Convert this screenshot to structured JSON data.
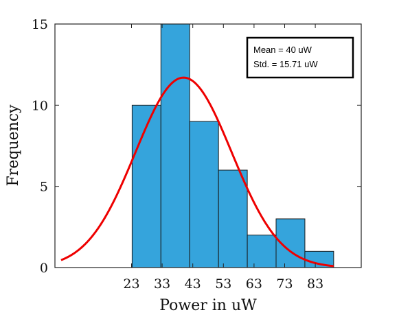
{
  "chart_data": {
    "type": "bar",
    "title": "",
    "xlabel": "Power in uW",
    "ylabel": "Frequency",
    "xlim": [
      -2,
      98
    ],
    "ylim": [
      0,
      15
    ],
    "bin_width": 9.4,
    "bins": [
      {
        "start": 23.2,
        "end": 32.6,
        "count": 10
      },
      {
        "start": 32.6,
        "end": 42.0,
        "count": 15
      },
      {
        "start": 42.0,
        "end": 51.4,
        "count": 9
      },
      {
        "start": 51.4,
        "end": 60.8,
        "count": 6
      },
      {
        "start": 60.8,
        "end": 70.2,
        "count": 2
      },
      {
        "start": 70.2,
        "end": 79.6,
        "count": 3
      },
      {
        "start": 79.6,
        "end": 89.0,
        "count": 1
      }
    ],
    "x_ticks": [
      23,
      33,
      43,
      53,
      63,
      73,
      83
    ],
    "y_ticks": [
      0,
      5,
      10,
      15
    ],
    "fit_curve": {
      "type": "normal",
      "mean": 40,
      "std": 15.71,
      "peak": 11.7,
      "x_range": [
        0,
        89
      ],
      "color": "#ee0000"
    },
    "bar_color": "#35a4dc",
    "grid": false,
    "annotation": {
      "line1": "Mean = 40 uW",
      "line2": "Std. =  15.71 uW"
    }
  }
}
